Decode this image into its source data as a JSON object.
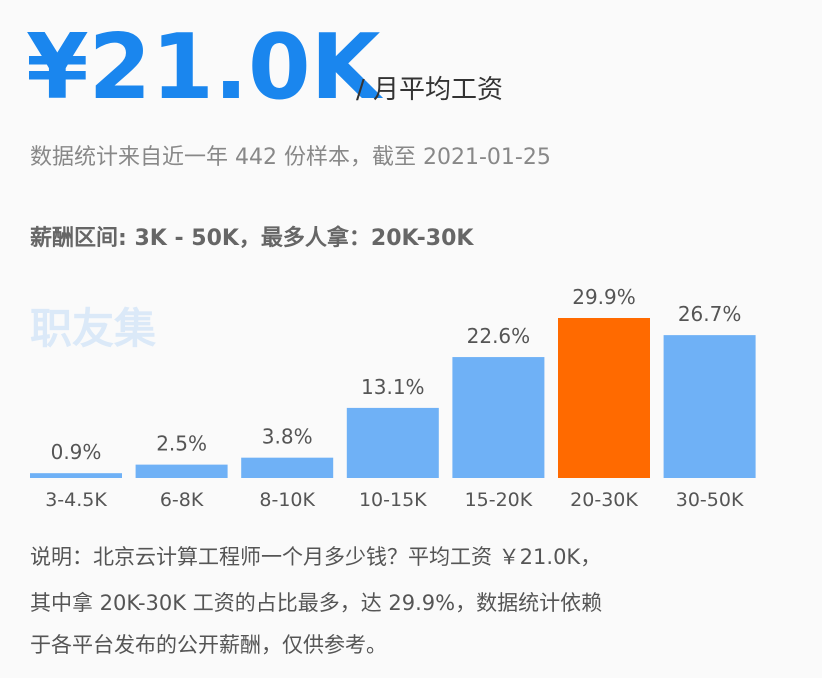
{
  "header": {
    "amount": "¥21.0K",
    "unit": "/ 月平均工资",
    "source": "数据统计来自近一年 442 份样本，截至 2021-01-25",
    "range": "薪酬区间: 3K - 50K，最多人拿：20K-30K",
    "watermark": "职友集"
  },
  "chart_data": {
    "type": "bar",
    "categories": [
      "3-4.5K",
      "6-8K",
      "8-10K",
      "10-15K",
      "15-20K",
      "20-30K",
      "30-50K"
    ],
    "values": [
      0.9,
      2.5,
      3.8,
      13.1,
      22.6,
      29.9,
      26.7
    ],
    "value_labels": [
      "0.9%",
      "2.5%",
      "3.8%",
      "13.1%",
      "22.6%",
      "29.9%",
      "26.7%"
    ],
    "colors": [
      "#6fb1f6",
      "#6fb1f6",
      "#6fb1f6",
      "#6fb1f6",
      "#6fb1f6",
      "#ff6a00",
      "#6fb1f6"
    ]
  },
  "note": {
    "lines": [
      "说明：北京云计算工程师一个月多少钱？平均工资 ￥21.0K，",
      "其中拿 20K-30K 工资的占比最多，达 29.9%，数据统计依赖",
      "于各平台发布的公开薪酬，仅供参考。"
    ]
  }
}
